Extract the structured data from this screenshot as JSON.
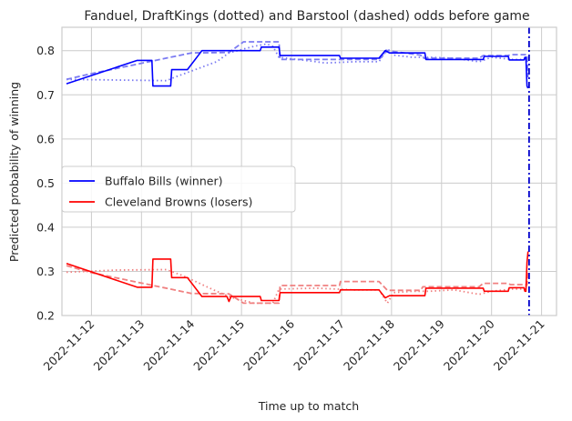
{
  "chart_data": {
    "type": "line",
    "title": "Fanduel, DraftKings (dotted) and Barstool (dashed) odds before game",
    "xlabel": "Time up to match",
    "ylabel": "Predicted probability of winning",
    "x_ticks": [
      "2022-11-12",
      "2022-11-13",
      "2022-11-14",
      "2022-11-15",
      "2022-11-16",
      "2022-11-17",
      "2022-11-18",
      "2022-11-19",
      "2022-11-20",
      "2022-11-21"
    ],
    "xlim": [
      "2022-11-11T09:50",
      "2022-11-21T07:10"
    ],
    "y_ticks": [
      0.2,
      0.3,
      0.4,
      0.5,
      0.6,
      0.7,
      0.8
    ],
    "ylim": [
      0.2,
      0.853
    ],
    "grid": true,
    "legend_position": "center-left",
    "match_time": "2022-11-20T18:00",
    "series": [
      {
        "name": "Buffalo Bills (winner)",
        "color": "#0000ff",
        "style": "solid",
        "legend": true,
        "points": [
          [
            "2022-11-11T12:00",
            0.725
          ],
          [
            "2022-11-12T22:00",
            0.778
          ],
          [
            "2022-11-13T05:00",
            0.778
          ],
          [
            "2022-11-13T05:30",
            0.72
          ],
          [
            "2022-11-13T14:00",
            0.72
          ],
          [
            "2022-11-13T14:30",
            0.757
          ],
          [
            "2022-11-13T22:00",
            0.757
          ],
          [
            "2022-11-14T05:00",
            0.8
          ],
          [
            "2022-11-15T09:00",
            0.8
          ],
          [
            "2022-11-15T09:30",
            0.808
          ],
          [
            "2022-11-15T18:00",
            0.808
          ],
          [
            "2022-11-15T18:30",
            0.789
          ],
          [
            "2022-11-16T23:00",
            0.789
          ],
          [
            "2022-11-16T23:30",
            0.783
          ],
          [
            "2022-11-17T18:00",
            0.783
          ],
          [
            "2022-11-17T19:00",
            0.789
          ],
          [
            "2022-11-17T21:00",
            0.8
          ],
          [
            "2022-11-17T23:00",
            0.795
          ],
          [
            "2022-11-18T16:00",
            0.795
          ],
          [
            "2022-11-18T16:30",
            0.78
          ],
          [
            "2022-11-19T20:00",
            0.78
          ],
          [
            "2022-11-19T20:30",
            0.787
          ],
          [
            "2022-11-20T08:00",
            0.787
          ],
          [
            "2022-11-20T08:30",
            0.779
          ],
          [
            "2022-11-20T15:30",
            0.779
          ],
          [
            "2022-11-20T16:00",
            0.785
          ],
          [
            "2022-11-20T16:30",
            0.785
          ],
          [
            "2022-11-20T17:00",
            0.72
          ],
          [
            "2022-11-20T17:30",
            0.715
          ]
        ]
      },
      {
        "name": "Cleveland Browns (losers)",
        "color": "#ff0000",
        "style": "solid",
        "legend": true,
        "points": [
          [
            "2022-11-11T12:00",
            0.318
          ],
          [
            "2022-11-12T22:00",
            0.264
          ],
          [
            "2022-11-13T05:00",
            0.264
          ],
          [
            "2022-11-13T05:30",
            0.328
          ],
          [
            "2022-11-13T14:00",
            0.328
          ],
          [
            "2022-11-13T14:30",
            0.286
          ],
          [
            "2022-11-13T22:00",
            0.286
          ],
          [
            "2022-11-14T05:00",
            0.243
          ],
          [
            "2022-11-14T17:00",
            0.243
          ],
          [
            "2022-11-14T18:00",
            0.232
          ],
          [
            "2022-11-14T19:00",
            0.243
          ],
          [
            "2022-11-15T09:00",
            0.243
          ],
          [
            "2022-11-15T09:30",
            0.234
          ],
          [
            "2022-11-15T18:00",
            0.234
          ],
          [
            "2022-11-15T18:30",
            0.252
          ],
          [
            "2022-11-16T23:00",
            0.252
          ],
          [
            "2022-11-16T23:30",
            0.258
          ],
          [
            "2022-11-17T18:00",
            0.258
          ],
          [
            "2022-11-17T19:00",
            0.252
          ],
          [
            "2022-11-17T21:00",
            0.24
          ],
          [
            "2022-11-17T23:00",
            0.245
          ],
          [
            "2022-11-18T16:00",
            0.245
          ],
          [
            "2022-11-18T16:30",
            0.262
          ],
          [
            "2022-11-19T20:00",
            0.262
          ],
          [
            "2022-11-19T20:30",
            0.255
          ],
          [
            "2022-11-20T08:00",
            0.255
          ],
          [
            "2022-11-20T08:30",
            0.263
          ],
          [
            "2022-11-20T15:30",
            0.263
          ],
          [
            "2022-11-20T16:00",
            0.255
          ],
          [
            "2022-11-20T16:30",
            0.255
          ],
          [
            "2022-11-20T17:00",
            0.32
          ],
          [
            "2022-11-20T17:30",
            0.345
          ]
        ]
      },
      {
        "color": "#7b7bf2",
        "style": "dotted",
        "legend": false,
        "points": [
          [
            "2022-11-11T12:00",
            0.735
          ],
          [
            "2022-11-13T12:00",
            0.732
          ],
          [
            "2022-11-13T16:00",
            0.74
          ],
          [
            "2022-11-14T12:00",
            0.775
          ],
          [
            "2022-11-14T18:00",
            0.795
          ],
          [
            "2022-11-15T06:00",
            0.81
          ],
          [
            "2022-11-15T12:00",
            0.815
          ],
          [
            "2022-11-15T15:00",
            0.81
          ],
          [
            "2022-11-15T18:00",
            0.785
          ],
          [
            "2022-11-16T12:00",
            0.775
          ],
          [
            "2022-11-16T16:00",
            0.772
          ],
          [
            "2022-11-17T06:00",
            0.775
          ],
          [
            "2022-11-17T18:00",
            0.775
          ],
          [
            "2022-11-17T22:00",
            0.805
          ],
          [
            "2022-11-18T01:00",
            0.79
          ],
          [
            "2022-11-18T10:00",
            0.785
          ],
          [
            "2022-11-18T18:00",
            0.785
          ],
          [
            "2022-11-19T06:00",
            0.783
          ],
          [
            "2022-11-19T18:00",
            0.775
          ],
          [
            "2022-11-20T00:00",
            0.785
          ],
          [
            "2022-11-20T10:00",
            0.78
          ],
          [
            "2022-11-20T16:30",
            0.78
          ],
          [
            "2022-11-20T17:30",
            0.74
          ]
        ]
      },
      {
        "color": "#7b7bf2",
        "style": "dashed",
        "legend": false,
        "points": [
          [
            "2022-11-11T12:00",
            0.735
          ],
          [
            "2022-11-12T00:00",
            0.748
          ],
          [
            "2022-11-14T00:00",
            0.795
          ],
          [
            "2022-11-14T18:00",
            0.796
          ],
          [
            "2022-11-15T01:00",
            0.82
          ],
          [
            "2022-11-15T18:00",
            0.82
          ],
          [
            "2022-11-15T18:30",
            0.78
          ],
          [
            "2022-11-16T23:00",
            0.78
          ],
          [
            "2022-11-16T23:30",
            0.78
          ],
          [
            "2022-11-17T18:00",
            0.78
          ],
          [
            "2022-11-17T22:00",
            0.8
          ],
          [
            "2022-11-18T14:00",
            0.79
          ],
          [
            "2022-11-18T15:00",
            0.783
          ],
          [
            "2022-11-19T18:00",
            0.783
          ],
          [
            "2022-11-19T20:00",
            0.789
          ],
          [
            "2022-11-20T08:00",
            0.789
          ],
          [
            "2022-11-20T09:00",
            0.791
          ],
          [
            "2022-11-20T17:00",
            0.791
          ],
          [
            "2022-11-20T17:30",
            0.74
          ]
        ]
      },
      {
        "color": "#f08080",
        "style": "dotted",
        "legend": false,
        "points": [
          [
            "2022-11-11T12:00",
            0.298
          ],
          [
            "2022-11-12T12:00",
            0.303
          ],
          [
            "2022-11-13T12:00",
            0.304
          ],
          [
            "2022-11-13T20:00",
            0.29
          ],
          [
            "2022-11-14T12:00",
            0.255
          ],
          [
            "2022-11-14T20:00",
            0.24
          ],
          [
            "2022-11-15T06:00",
            0.228
          ],
          [
            "2022-11-15T15:00",
            0.228
          ],
          [
            "2022-11-15T18:00",
            0.26
          ],
          [
            "2022-11-16T12:00",
            0.262
          ],
          [
            "2022-11-17T06:00",
            0.258
          ],
          [
            "2022-11-17T18:00",
            0.258
          ],
          [
            "2022-11-17T22:00",
            0.228
          ],
          [
            "2022-11-18T01:00",
            0.252
          ],
          [
            "2022-11-18T10:00",
            0.255
          ],
          [
            "2022-11-18T18:00",
            0.255
          ],
          [
            "2022-11-19T06:00",
            0.258
          ],
          [
            "2022-11-19T18:00",
            0.248
          ],
          [
            "2022-11-20T00:00",
            0.255
          ],
          [
            "2022-11-20T10:00",
            0.26
          ],
          [
            "2022-11-20T16:30",
            0.26
          ],
          [
            "2022-11-20T17:30",
            0.3
          ]
        ]
      },
      {
        "color": "#f08080",
        "style": "dashed",
        "legend": false,
        "points": [
          [
            "2022-11-11T12:00",
            0.313
          ],
          [
            "2022-11-12T00:00",
            0.297
          ],
          [
            "2022-11-14T00:00",
            0.25
          ],
          [
            "2022-11-14T18:00",
            0.249
          ],
          [
            "2022-11-15T01:00",
            0.228
          ],
          [
            "2022-11-15T18:00",
            0.228
          ],
          [
            "2022-11-15T18:30",
            0.268
          ],
          [
            "2022-11-16T23:00",
            0.268
          ],
          [
            "2022-11-16T23:30",
            0.277
          ],
          [
            "2022-11-17T18:00",
            0.277
          ],
          [
            "2022-11-17T22:00",
            0.257
          ],
          [
            "2022-11-18T14:00",
            0.257
          ],
          [
            "2022-11-18T15:00",
            0.265
          ],
          [
            "2022-11-19T18:00",
            0.265
          ],
          [
            "2022-11-19T20:00",
            0.273
          ],
          [
            "2022-11-20T08:00",
            0.273
          ],
          [
            "2022-11-20T09:00",
            0.27
          ],
          [
            "2022-11-20T17:00",
            0.27
          ],
          [
            "2022-11-20T17:30",
            0.3
          ]
        ]
      }
    ]
  }
}
